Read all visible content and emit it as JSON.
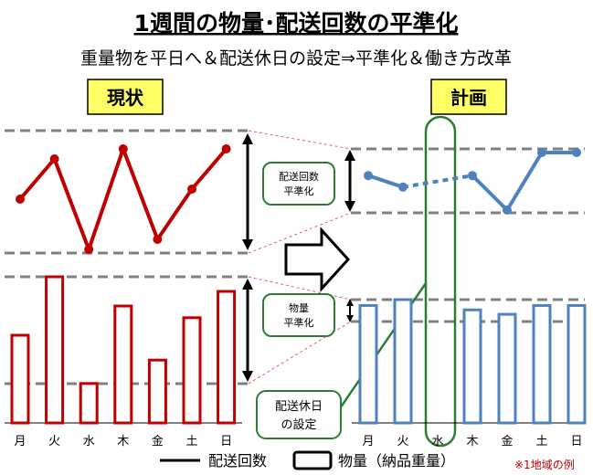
{
  "title": "1週間の物量･配送回数の平準化",
  "subtitle": "重量物を平日へ＆配送休日の設定⇒平準化＆働き方改革",
  "labels": {
    "current": "現状",
    "plan": "計画",
    "callout_trips_line1": "配送回数",
    "callout_trips_line2": "平準化",
    "callout_volume_line1": "物量",
    "callout_volume_line2": "平準化",
    "callout_holiday_line1": "配送休日",
    "callout_holiday_line2": "の設定",
    "legend_trips": "配送回数",
    "legend_volume": "物量（納品重量）",
    "note": "※1地域の例"
  },
  "colors": {
    "current": "#c00000",
    "plan": "#4f81bd",
    "callout_border": "#2e7d32",
    "title_box_fill": "#ffff66",
    "reference_line": "#808080"
  },
  "chart_data": [
    {
      "name": "現状",
      "type": "bar+line",
      "categories": [
        "月",
        "火",
        "水",
        "木",
        "金",
        "土",
        "日"
      ],
      "series": [
        {
          "name": "配送回数",
          "type": "line",
          "values": [
            6,
            10,
            1,
            11,
            2,
            7,
            11
          ],
          "ylim": [
            0,
            12
          ]
        },
        {
          "name": "物量（納品重量）",
          "type": "bar",
          "values": [
            60,
            100,
            27,
            80,
            43,
            72,
            90
          ],
          "ylim": [
            0,
            100
          ]
        }
      ]
    },
    {
      "name": "計画",
      "type": "bar+line",
      "categories": [
        "月",
        "火",
        "水",
        "木",
        "金",
        "土",
        "日"
      ],
      "holiday": "水",
      "series": [
        {
          "name": "配送回数",
          "type": "line",
          "values": [
            6,
            5,
            null,
            6,
            3,
            8,
            8
          ],
          "ylim": [
            0,
            12
          ]
        },
        {
          "name": "物量（納品重量）",
          "type": "bar",
          "values": [
            80,
            84,
            null,
            77,
            74,
            80,
            80
          ],
          "ylim": [
            0,
            100
          ]
        }
      ]
    }
  ]
}
